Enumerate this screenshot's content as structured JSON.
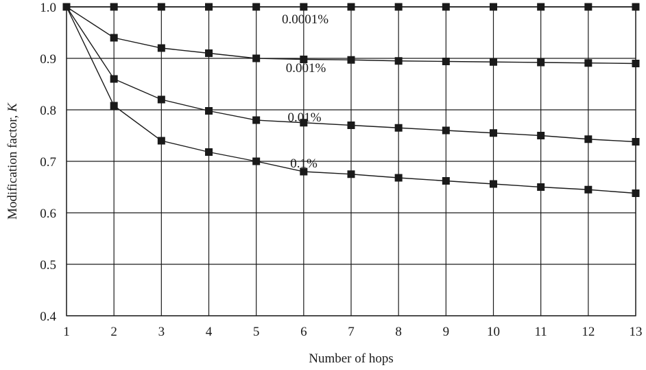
{
  "chart_data": {
    "type": "line",
    "title": "",
    "xlabel": "Number of hops",
    "ylabel_main": "Modification factor, ",
    "ylabel_symbol": "K",
    "x": [
      1,
      2,
      3,
      4,
      5,
      6,
      7,
      8,
      9,
      10,
      11,
      12,
      13
    ],
    "xlim": [
      1,
      13
    ],
    "ylim": [
      0.4,
      1.0
    ],
    "x_ticks": [
      "1",
      "2",
      "3",
      "4",
      "5",
      "6",
      "7",
      "8",
      "9",
      "10",
      "11",
      "12",
      "13"
    ],
    "y_ticks": [
      "0.4",
      "0.5",
      "0.6",
      "0.7",
      "0.8",
      "0.9",
      "1.0"
    ],
    "grid": true,
    "marker": "square",
    "series": [
      {
        "name": "0.0001%",
        "values": [
          1.0,
          1.0,
          1.0,
          1.0,
          1.0,
          1.0,
          1.0,
          1.0,
          1.0,
          1.0,
          1.0,
          1.0,
          1.0
        ]
      },
      {
        "name": "0.001%",
        "values": [
          1.0,
          0.94,
          0.92,
          0.91,
          0.9,
          0.898,
          0.897,
          0.895,
          0.894,
          0.893,
          0.892,
          0.891,
          0.89
        ]
      },
      {
        "name": "0.01%",
        "values": [
          1.0,
          0.86,
          0.82,
          0.798,
          0.78,
          0.775,
          0.77,
          0.765,
          0.76,
          0.755,
          0.75,
          0.743,
          0.738
        ]
      },
      {
        "name": "0.1%",
        "values": [
          1.0,
          0.808,
          0.74,
          0.718,
          0.7,
          0.68,
          0.675,
          0.668,
          0.662,
          0.656,
          0.65,
          0.645,
          0.638
        ]
      }
    ]
  }
}
